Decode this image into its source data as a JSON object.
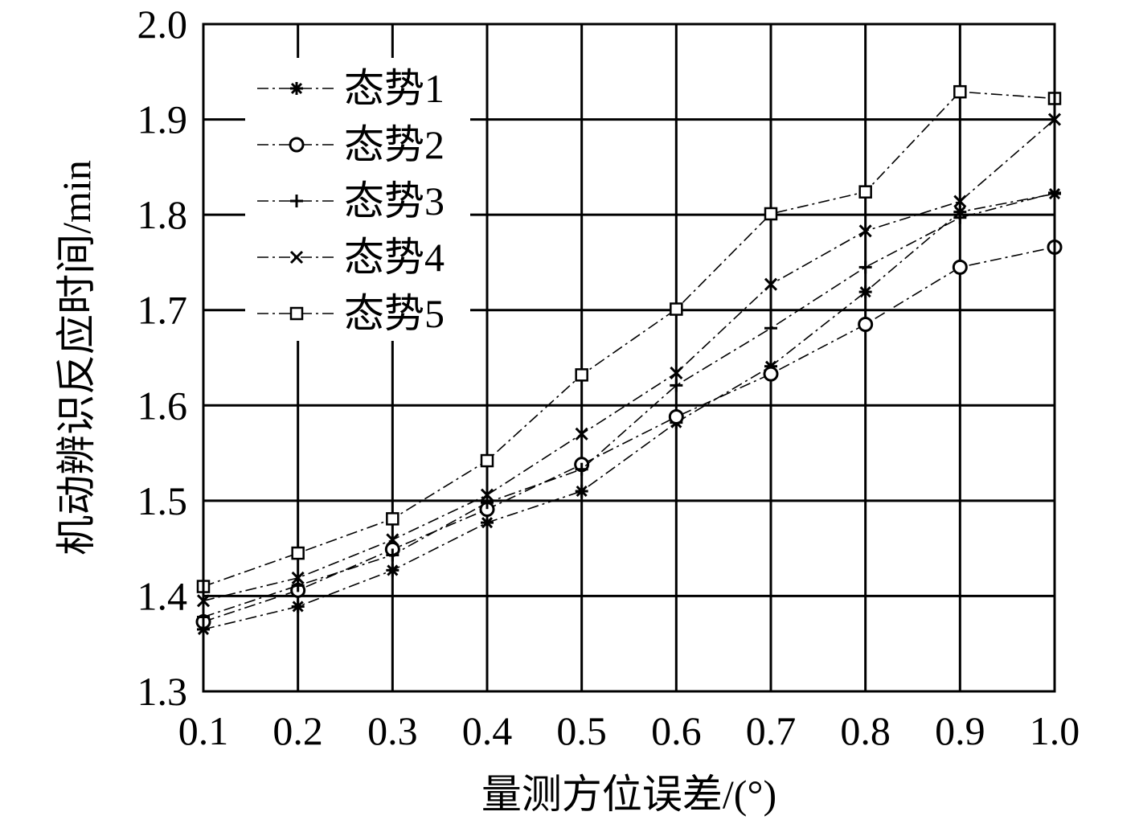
{
  "chart_data": {
    "type": "line",
    "title": "",
    "xlabel": "量测方位误差/(°)",
    "ylabel": "机动辨识反应时间/min",
    "xlim": [
      0.1,
      1.0
    ],
    "ylim": [
      1.3,
      2.0
    ],
    "x": [
      0.1,
      0.2,
      0.3,
      0.4,
      0.5,
      0.6,
      0.7,
      0.8,
      0.9,
      1.0
    ],
    "x_tick_labels": [
      "0.1",
      "0.2",
      "0.3",
      "0.4",
      "0.5",
      "0.6",
      "0.7",
      "0.8",
      "0.9",
      "1.0"
    ],
    "y_ticks": [
      1.3,
      1.4,
      1.5,
      1.6,
      1.7,
      1.8,
      1.9,
      2.0
    ],
    "y_tick_labels": [
      "1.3",
      "1.4",
      "1.5",
      "1.6",
      "1.7",
      "1.8",
      "1.9",
      "2.0"
    ],
    "grid": true,
    "legend_position": "top-left",
    "line_style": "dash-dot",
    "color": "#000000",
    "series": [
      {
        "name": "态势1",
        "marker": "asterisk",
        "values": [
          1.365,
          1.389,
          1.427,
          1.477,
          1.51,
          1.582,
          1.641,
          1.719,
          1.803,
          1.822
        ]
      },
      {
        "name": "态势2",
        "marker": "circle",
        "values": [
          1.373,
          1.406,
          1.449,
          1.491,
          1.538,
          1.588,
          1.633,
          1.685,
          1.745,
          1.766
        ]
      },
      {
        "name": "态势3",
        "marker": "plus",
        "values": [
          1.378,
          1.411,
          1.443,
          1.498,
          1.533,
          1.621,
          1.681,
          1.745,
          1.797,
          1.823
        ]
      },
      {
        "name": "态势4",
        "marker": "cross",
        "values": [
          1.395,
          1.419,
          1.459,
          1.506,
          1.57,
          1.634,
          1.727,
          1.783,
          1.814,
          1.9
        ]
      },
      {
        "name": "态势5",
        "marker": "square",
        "values": [
          1.41,
          1.445,
          1.481,
          1.542,
          1.632,
          1.701,
          1.801,
          1.824,
          1.929,
          1.922
        ]
      }
    ]
  }
}
